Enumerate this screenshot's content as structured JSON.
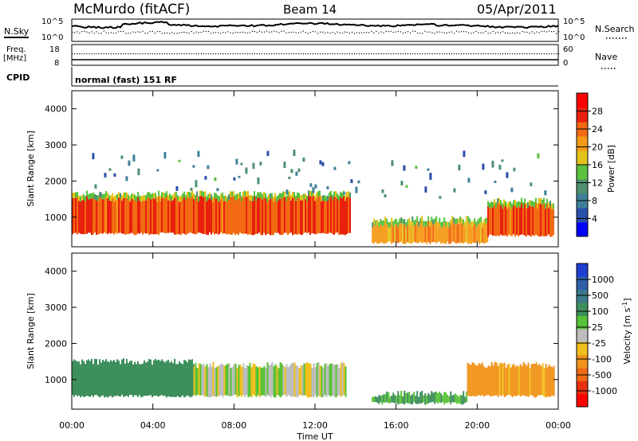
{
  "header": {
    "station": "McMurdo (fitACF)",
    "beam": "Beam 14",
    "date": "05/Apr/2011"
  },
  "top_panels": {
    "nsky_label": "N.Sky",
    "nsearch_label": "N.Search",
    "noise_ticks": [
      "10^5",
      "10^0"
    ],
    "freq_label": "Freq.",
    "freq_unit": "[MHz]",
    "freq_ticks": [
      "18",
      "8"
    ],
    "nave_label": "Nave",
    "nave_ticks": [
      "60",
      "0"
    ],
    "cpid_label": "CPID",
    "cpid_text": "normal (fast) 151 RF"
  },
  "colors": {
    "power_scale": [
      "#0000ff",
      "#2a4fa8",
      "#3f7f9a",
      "#4d8f70",
      "#5bc13f",
      "#e3c21a",
      "#f59a16",
      "#f26a12",
      "#e8200e",
      "#ff0000"
    ],
    "velocity_scale": [
      "#1f3fd0",
      "#2e60a8",
      "#3c7a8a",
      "#3d8f5c",
      "#58c236",
      "#bdbdbd",
      "#f0c020",
      "#f0941c",
      "#ee6a14",
      "#e63010",
      "#ff0000"
    ]
  },
  "chart_data": [
    {
      "type": "heatmap",
      "name": "power",
      "ylabel": "Slant Range [km]",
      "xlabel": "Time UT",
      "ylim": [
        180,
        4500
      ],
      "yticks": [
        1000,
        2000,
        3000,
        4000
      ],
      "xlim_hours": [
        0,
        24
      ],
      "xticks": [
        "00:00",
        "04:00",
        "08:00",
        "12:00",
        "16:00",
        "20:00",
        "00:00"
      ],
      "colorbar": {
        "label": "Power [dB]",
        "range": [
          0,
          32
        ],
        "ticks": [
          4,
          8,
          12,
          16,
          20,
          24,
          28
        ]
      },
      "regions": [
        {
          "desc": "strong echo band",
          "t_start": 0,
          "t_end": 13.7,
          "range_low_km": 500,
          "range_high_km": 1500,
          "power_db": 26
        },
        {
          "desc": "strong echo band",
          "t_start": 14.8,
          "t_end": 20.5,
          "range_low_km": 250,
          "range_high_km": 800,
          "power_db": 22
        },
        {
          "desc": "strong echo band",
          "t_start": 20.5,
          "t_end": 23.8,
          "range_low_km": 450,
          "range_high_km": 1300,
          "power_db": 26
        },
        {
          "desc": "weak scattered echoes",
          "t_start": 1,
          "t_end": 23.5,
          "range_low_km": 1500,
          "range_high_km": 3500,
          "power_db": 8
        }
      ]
    },
    {
      "type": "heatmap",
      "name": "velocity",
      "ylabel": "Slant Range [km]",
      "xlabel": "Time UT",
      "ylim": [
        180,
        4500
      ],
      "yticks": [
        1000,
        2000,
        3000,
        4000
      ],
      "xlim_hours": [
        0,
        24
      ],
      "xticks": [
        "00:00",
        "04:00",
        "08:00",
        "12:00",
        "16:00",
        "20:00",
        "00:00"
      ],
      "colorbar": {
        "label": "Velocity [m s^-1]",
        "ticks": [
          1000,
          500,
          100,
          25,
          -25,
          -100,
          -500,
          -1000
        ]
      },
      "regions": [
        {
          "desc": "positive velocity band",
          "t_start": 0,
          "t_end": 6,
          "range_low_km": 500,
          "range_high_km": 1500,
          "velocity_ms": 300
        },
        {
          "desc": "near-zero velocity band",
          "t_start": 6,
          "t_end": 13.5,
          "range_low_km": 500,
          "range_high_km": 1400,
          "velocity_ms": 0
        },
        {
          "desc": "low positive band",
          "t_start": 14.8,
          "t_end": 19.5,
          "range_low_km": 300,
          "range_high_km": 600,
          "velocity_ms": 100
        },
        {
          "desc": "negative velocity band",
          "t_start": 19.5,
          "t_end": 23.8,
          "range_low_km": 500,
          "range_high_km": 1400,
          "velocity_ms": -150
        }
      ]
    }
  ]
}
